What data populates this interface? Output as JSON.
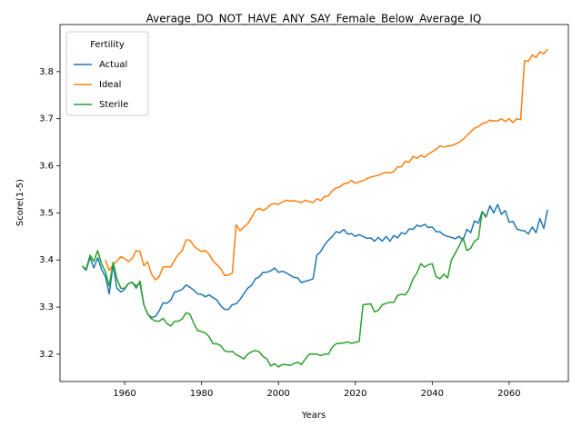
{
  "chart_data": {
    "type": "line",
    "title": "Average_DO_NOT_HAVE_ANY_SAY_Female_Below_Average_IQ",
    "xlabel": "Years",
    "ylabel": "Score(1-5)",
    "legend_title": "Fertility",
    "legend_loc": "upper left",
    "grid": false,
    "xlim": [
      1943.2,
      2075.4
    ],
    "ylim": [
      3.142,
      3.9
    ],
    "xticks": [
      1960,
      1980,
      2000,
      2020,
      2040,
      2060
    ],
    "yticks": [
      3.2,
      3.3,
      3.4,
      3.5,
      3.6,
      3.7,
      3.8
    ],
    "x": [
      1949,
      1950,
      1951,
      1952,
      1953,
      1954,
      1955,
      1956,
      1957,
      1958,
      1959,
      1960,
      1961,
      1962,
      1963,
      1964,
      1965,
      1966,
      1967,
      1968,
      1969,
      1970,
      1971,
      1972,
      1973,
      1974,
      1975,
      1976,
      1977,
      1978,
      1979,
      1980,
      1981,
      1982,
      1983,
      1984,
      1985,
      1986,
      1987,
      1988,
      1989,
      1990,
      1991,
      1992,
      1993,
      1994,
      1995,
      1996,
      1997,
      1998,
      1999,
      2000,
      2001,
      2002,
      2003,
      2004,
      2005,
      2006,
      2007,
      2008,
      2009,
      2010,
      2011,
      2012,
      2013,
      2014,
      2015,
      2016,
      2017,
      2018,
      2019,
      2020,
      2021,
      2022,
      2023,
      2024,
      2025,
      2026,
      2027,
      2028,
      2029,
      2030,
      2031,
      2032,
      2033,
      2034,
      2035,
      2036,
      2037,
      2038,
      2039,
      2040,
      2041,
      2042,
      2043,
      2044,
      2045,
      2046,
      2047,
      2048,
      2049,
      2050,
      2051,
      2052,
      2053,
      2054,
      2055,
      2056,
      2057,
      2058,
      2059,
      2060,
      2061,
      2062,
      2063,
      2064,
      2065,
      2066,
      2067,
      2068,
      2069,
      2070
    ],
    "series": [
      {
        "name": "Actual",
        "color": "#1f77b4",
        "values": [
          3.387,
          3.378,
          3.405,
          3.383,
          3.405,
          3.38,
          3.365,
          3.328,
          3.39,
          3.34,
          3.332,
          3.338,
          3.35,
          3.352,
          3.345,
          3.35,
          3.305,
          3.285,
          3.278,
          3.28,
          3.292,
          3.309,
          3.308,
          3.315,
          3.332,
          3.334,
          3.338,
          3.347,
          3.342,
          3.336,
          3.328,
          3.327,
          3.322,
          3.326,
          3.32,
          3.315,
          3.303,
          3.295,
          3.295,
          3.305,
          3.307,
          3.316,
          3.328,
          3.34,
          3.346,
          3.36,
          3.364,
          3.374,
          3.374,
          3.377,
          3.383,
          3.374,
          3.376,
          3.373,
          3.368,
          3.363,
          3.362,
          3.352,
          3.355,
          3.357,
          3.36,
          3.41,
          3.418,
          3.432,
          3.442,
          3.45,
          3.46,
          3.458,
          3.465,
          3.455,
          3.456,
          3.45,
          3.454,
          3.45,
          3.446,
          3.447,
          3.44,
          3.448,
          3.44,
          3.45,
          3.44,
          3.452,
          3.447,
          3.458,
          3.455,
          3.466,
          3.465,
          3.474,
          3.471,
          3.476,
          3.469,
          3.47,
          3.46,
          3.46,
          3.453,
          3.45,
          3.448,
          3.445,
          3.45,
          3.442,
          3.465,
          3.458,
          3.483,
          3.478,
          3.503,
          3.492,
          3.515,
          3.5,
          3.518,
          3.497,
          3.505,
          3.48,
          3.482,
          3.466,
          3.463,
          3.462,
          3.455,
          3.47,
          3.458,
          3.488,
          3.467,
          3.507
        ]
      },
      {
        "name": "Ideal",
        "color": "#ff7f0e",
        "values": [
          null,
          null,
          null,
          null,
          null,
          null,
          3.4,
          3.378,
          3.39,
          3.398,
          3.407,
          3.403,
          3.397,
          3.403,
          3.42,
          3.418,
          3.388,
          3.396,
          3.37,
          3.358,
          3.365,
          3.385,
          3.386,
          3.385,
          3.4,
          3.412,
          3.42,
          3.443,
          3.442,
          3.43,
          3.423,
          3.418,
          3.42,
          3.412,
          3.398,
          3.39,
          3.382,
          3.367,
          3.368,
          3.372,
          3.475,
          3.462,
          3.47,
          3.477,
          3.49,
          3.505,
          3.51,
          3.505,
          3.51,
          3.518,
          3.52,
          3.518,
          3.523,
          3.527,
          3.525,
          3.526,
          3.524,
          3.522,
          3.527,
          3.524,
          3.522,
          3.53,
          3.526,
          3.535,
          3.536,
          3.547,
          3.553,
          3.555,
          3.562,
          3.563,
          3.569,
          3.563,
          3.566,
          3.568,
          3.573,
          3.576,
          3.578,
          3.58,
          3.584,
          3.586,
          3.585,
          3.588,
          3.598,
          3.598,
          3.61,
          3.607,
          3.62,
          3.616,
          3.622,
          3.618,
          3.625,
          3.63,
          3.635,
          3.642,
          3.64,
          3.642,
          3.643,
          3.646,
          3.65,
          3.656,
          3.664,
          3.672,
          3.68,
          3.683,
          3.69,
          3.692,
          3.697,
          3.695,
          3.695,
          3.7,
          3.694,
          3.7,
          3.692,
          3.7,
          3.698,
          3.823,
          3.822,
          3.835,
          3.83,
          3.842,
          3.838,
          3.848
        ]
      },
      {
        "name": "Sterile",
        "color": "#2ca02c",
        "values": [
          3.387,
          3.38,
          3.41,
          3.397,
          3.42,
          3.392,
          3.375,
          3.345,
          3.395,
          3.36,
          3.34,
          3.34,
          3.35,
          3.353,
          3.34,
          3.355,
          3.305,
          3.285,
          3.275,
          3.27,
          3.27,
          3.276,
          3.265,
          3.26,
          3.27,
          3.27,
          3.275,
          3.288,
          3.285,
          3.265,
          3.25,
          3.248,
          3.245,
          3.237,
          3.222,
          3.222,
          3.218,
          3.207,
          3.205,
          3.206,
          3.199,
          3.195,
          3.19,
          3.2,
          3.205,
          3.208,
          3.205,
          3.195,
          3.19,
          3.175,
          3.18,
          3.173,
          3.178,
          3.178,
          3.176,
          3.18,
          3.183,
          3.178,
          3.19,
          3.2,
          3.2,
          3.2,
          3.197,
          3.2,
          3.2,
          3.215,
          3.222,
          3.223,
          3.224,
          3.226,
          3.223,
          3.225,
          3.227,
          3.305,
          3.306,
          3.307,
          3.29,
          3.293,
          3.305,
          3.308,
          3.31,
          3.31,
          3.325,
          3.327,
          3.326,
          3.338,
          3.36,
          3.372,
          3.392,
          3.385,
          3.39,
          3.392,
          3.365,
          3.36,
          3.37,
          3.362,
          3.4,
          3.415,
          3.43,
          3.447,
          3.42,
          3.425,
          3.44,
          3.445,
          3.503,
          3.49,
          null,
          null,
          null,
          null,
          null,
          null,
          null,
          null,
          null,
          null,
          null,
          null,
          null,
          null,
          null,
          null
        ]
      }
    ]
  }
}
